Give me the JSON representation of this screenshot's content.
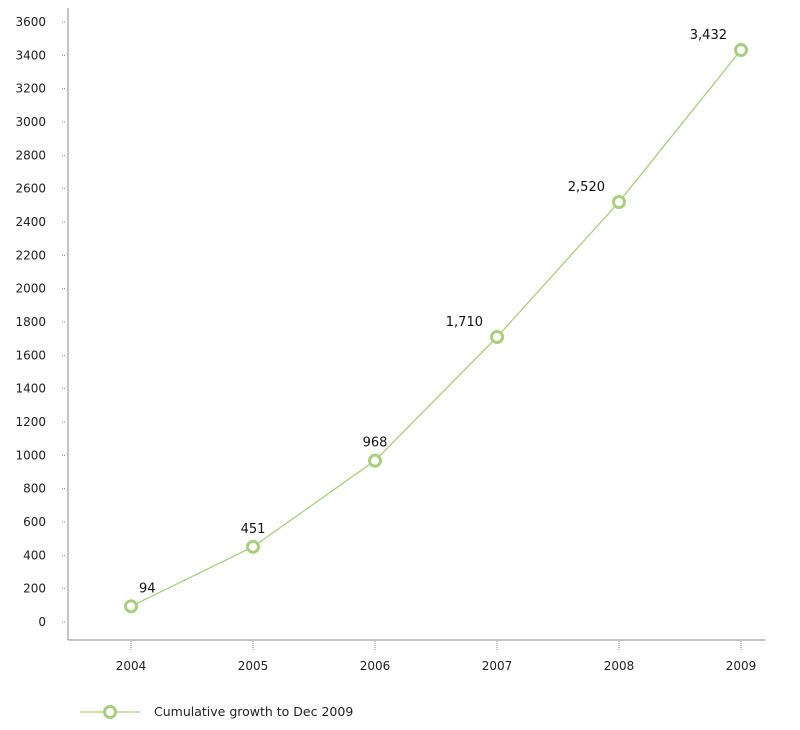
{
  "chart_data": {
    "type": "line",
    "x": [
      "2004",
      "2005",
      "2006",
      "2007",
      "2008",
      "2009"
    ],
    "y_ticks": [
      0,
      200,
      400,
      600,
      800,
      1000,
      1200,
      1400,
      1600,
      1800,
      2000,
      2200,
      2400,
      2600,
      2800,
      3000,
      3200,
      3400,
      3600
    ],
    "ylim": [
      0,
      3600
    ],
    "grid": false,
    "legend_position": "bottom-left",
    "series": [
      {
        "name": "Cumulative growth to Dec 2009",
        "values": [
          94,
          451,
          968,
          1710,
          2520,
          3432
        ],
        "labels": [
          "94",
          "451",
          "968",
          "1,710",
          "2,520",
          "3,432"
        ],
        "color": "#a8cf7c"
      }
    ],
    "axis_color": "#888888"
  }
}
